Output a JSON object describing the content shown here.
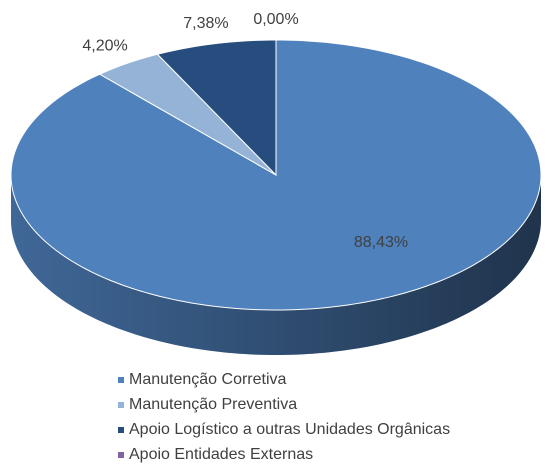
{
  "chart_data": {
    "type": "pie",
    "categories": [
      "Manutenção Corretiva",
      "Manutenção Preventiva",
      "Apoio Logístico a outras Unidades Orgânicas",
      "Apoio Entidades Externas"
    ],
    "values": [
      88.43,
      4.2,
      7.38,
      0.0
    ],
    "value_labels": [
      "88,43%",
      "4,20%",
      "7,38%",
      "0,00%"
    ],
    "colors": [
      "#4f81bd",
      "#95b3d7",
      "#264d7e",
      "#8064a2"
    ],
    "legend": "bottom"
  }
}
